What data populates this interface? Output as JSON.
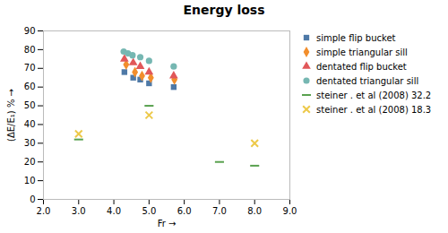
{
  "chart_data": {
    "type": "scatter",
    "title": "Energy loss",
    "xlabel": "Fr",
    "ylabel": "(ΔE/E₁) %",
    "xlim": [
      2.0,
      9.0
    ],
    "ylim": [
      0,
      90
    ],
    "xticks": [
      {
        "value": 2.0,
        "label": "2.0"
      },
      {
        "value": 3.0,
        "label": "3.0"
      },
      {
        "value": 4.0,
        "label": "4.0"
      },
      {
        "value": 5.0,
        "label": "5.0"
      },
      {
        "value": 6.0,
        "label": "6.0"
      },
      {
        "value": 7.0,
        "label": "7.0"
      },
      {
        "value": 8.0,
        "label": "8.0"
      },
      {
        "value": 9.0,
        "label": "9.0"
      }
    ],
    "yticks": [
      0,
      10,
      20,
      30,
      40,
      50,
      60,
      70,
      80,
      90
    ],
    "grid": false,
    "legend": "right",
    "series": [
      {
        "name": "simple flip bucket",
        "marker": "square",
        "x": [
          4.3,
          4.55,
          4.75,
          5.0,
          5.7
        ],
        "values": [
          68,
          65,
          64,
          62,
          60
        ]
      },
      {
        "name": "simple triangular sill",
        "marker": "diamond",
        "x": [
          4.35,
          4.6,
          4.8,
          5.05,
          5.72
        ],
        "values": [
          72,
          68,
          66,
          65,
          64
        ]
      },
      {
        "name": "dentated flip bucket",
        "marker": "triangle",
        "x": [
          4.3,
          4.55,
          4.75,
          5.0,
          5.7
        ],
        "values": [
          75,
          73,
          71,
          68,
          66
        ]
      },
      {
        "name": "dentated triangular sill",
        "marker": "circle",
        "x": [
          4.28,
          4.4,
          4.53,
          4.75,
          5.0,
          5.7
        ],
        "values": [
          79,
          78,
          77,
          76,
          74,
          71
        ]
      },
      {
        "name": "steiner . et al (2008) 32.2",
        "marker": "dash",
        "x": [
          3.0,
          5.0,
          7.0,
          8.0
        ],
        "values": [
          32,
          50,
          20,
          18
        ]
      },
      {
        "name": "steiner . et al (2008) 18.3",
        "marker": "x",
        "x": [
          3.0,
          5.0,
          8.0
        ],
        "values": [
          35,
          45,
          30
        ]
      }
    ]
  }
}
